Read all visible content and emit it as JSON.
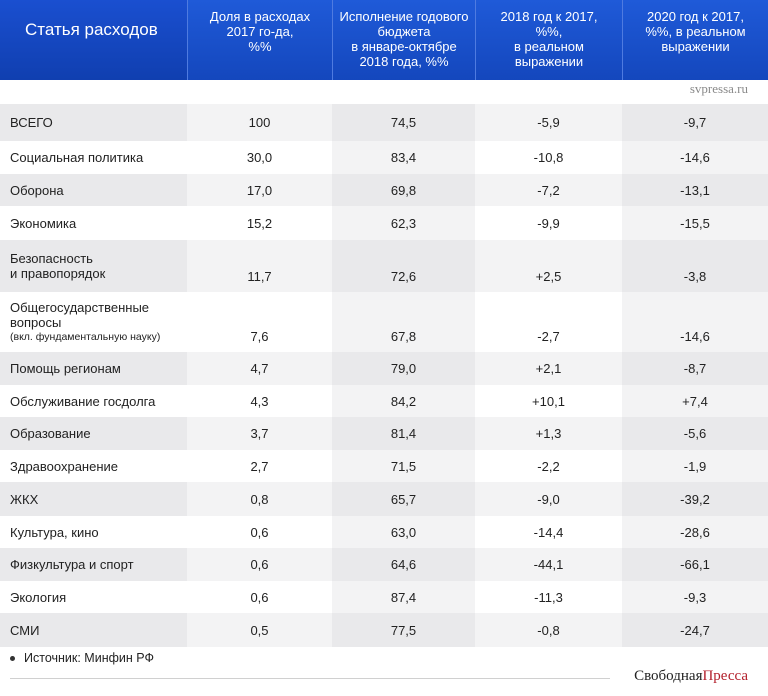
{
  "header": {
    "col0": "Статья расходов",
    "col1": [
      "Доля в расходах",
      "2017 го-да,",
      "%%"
    ],
    "col2": [
      "Исполнение годового",
      "бюджета",
      "в январе-октябре",
      "2018 года, %%"
    ],
    "col3": [
      "2018 год к 2017,",
      "%%,",
      "в реальном",
      "выражении"
    ],
    "col4": [
      "2020 год к 2017,",
      "%%, в реальном",
      "выражении"
    ]
  },
  "source_top": "svpressa.ru",
  "rows": [
    {
      "name": "ВСЕГО",
      "share": "100",
      "exec": "74,5",
      "y2018": "-5,9",
      "y2020": "-9,7"
    },
    {
      "name": "Социальная политика",
      "share": "30,0",
      "exec": "83,4",
      "y2018": "-10,8",
      "y2020": "-14,6"
    },
    {
      "name": "Оборона",
      "share": "17,0",
      "exec": "69,8",
      "y2018": "-7,2",
      "y2020": "-13,1"
    },
    {
      "name": "Экономика",
      "share": "15,2",
      "exec": "62,3",
      "y2018": "-9,9",
      "y2020": "-15,5"
    },
    {
      "name_l1": "Безопасность",
      "name_l2": "и правопорядок",
      "share": "11,7",
      "exec": "72,6",
      "y2018": "+2,5",
      "y2020": "-3,8"
    },
    {
      "name_l1": "Общегосударственные",
      "name_l2": "вопросы",
      "name_sub": "(вкл. фундаментальную науку)",
      "share": "7,6",
      "exec": "67,8",
      "y2018": "-2,7",
      "y2020": "-14,6"
    },
    {
      "name": "Помощь регионам",
      "share": "4,7",
      "exec": "79,0",
      "y2018": "+2,1",
      "y2020": "-8,7"
    },
    {
      "name": "Обслуживание госдолга",
      "share": "4,3",
      "exec": "84,2",
      "y2018": "+10,1",
      "y2020": "+7,4"
    },
    {
      "name": "Образование",
      "share": "3,7",
      "exec": "81,4",
      "y2018": "+1,3",
      "y2020": "-5,6"
    },
    {
      "name": "Здравоохранение",
      "share": "2,7",
      "exec": "71,5",
      "y2018": "-2,2",
      "y2020": "-1,9"
    },
    {
      "name": "ЖКХ",
      "share": "0,8",
      "exec": "65,7",
      "y2018": "-9,0",
      "y2020": "-39,2"
    },
    {
      "name": "Культура, кино",
      "share": "0,6",
      "exec": "63,0",
      "y2018": "-14,4",
      "y2020": "-28,6"
    },
    {
      "name": "Физкультура и спорт",
      "share": "0,6",
      "exec": "64,6",
      "y2018": "-44,1",
      "y2020": "-66,1"
    },
    {
      "name": "Экология",
      "share": "0,6",
      "exec": "87,4",
      "y2018": "-11,3",
      "y2020": "-9,3"
    },
    {
      "name": "СМИ",
      "share": "0,5",
      "exec": "77,5",
      "y2018": "-0,8",
      "y2020": "-24,7"
    }
  ],
  "footer": {
    "source": "Источник: Минфин РФ"
  },
  "brand": {
    "part1": "Свободная",
    "part2": "Пресса"
  }
}
